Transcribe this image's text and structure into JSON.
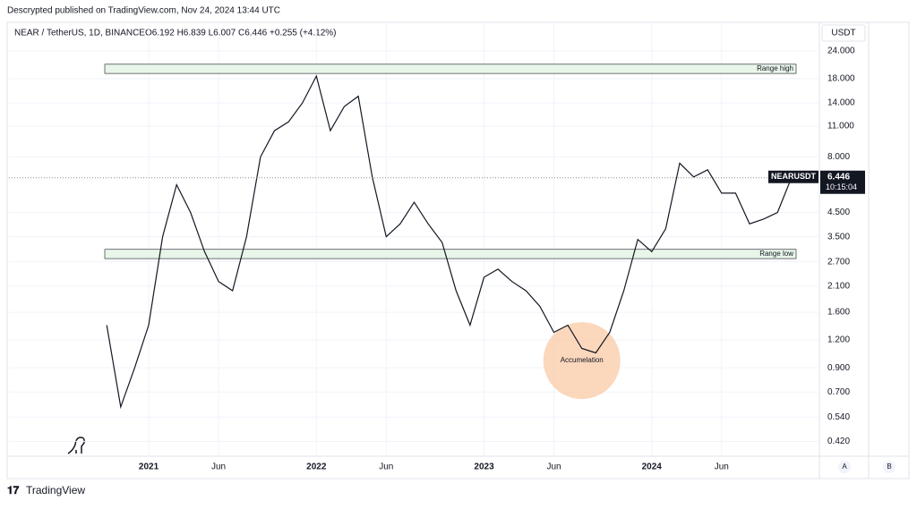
{
  "header": "Descrypted published on TradingView.com, Nov 24, 2024 13:44 UTC",
  "footer": "TradingView",
  "chart_data": {
    "type": "line",
    "title": "NEAR / TetherUS, 1D, BINANCE",
    "ohlc": "O6.192 H6.839 L6.007 C6.446 +0.255 (+4.12%)",
    "currency": "USDT",
    "log_scale": true,
    "grid": true,
    "x": [
      "2020-10",
      "2020-11",
      "2020-12",
      "2021-01",
      "2021-02",
      "2021-03",
      "2021-04",
      "2021-05",
      "2021-06",
      "2021-07",
      "2021-08",
      "2021-09",
      "2021-10",
      "2021-11",
      "2021-12",
      "2022-01",
      "2022-02",
      "2022-03",
      "2022-04",
      "2022-05",
      "2022-06",
      "2022-07",
      "2022-08",
      "2022-09",
      "2022-10",
      "2022-11",
      "2022-12",
      "2023-01",
      "2023-02",
      "2023-03",
      "2023-04",
      "2023-05",
      "2023-06",
      "2023-07",
      "2023-08",
      "2023-09",
      "2023-10",
      "2023-11",
      "2023-12",
      "2024-01",
      "2024-02",
      "2024-03",
      "2024-04",
      "2024-05",
      "2024-06",
      "2024-07",
      "2024-08",
      "2024-09",
      "2024-10",
      "2024-11"
    ],
    "series": [
      {
        "name": "NEARUSDT",
        "color": "#131722",
        "values": [
          1.4,
          0.6,
          0.9,
          1.4,
          3.5,
          6.0,
          4.5,
          3.0,
          2.2,
          2.0,
          3.5,
          8.0,
          10.5,
          11.5,
          14,
          18.5,
          10.5,
          13.5,
          15,
          6.5,
          3.5,
          4.0,
          5.0,
          4.0,
          3.3,
          2.0,
          1.4,
          2.3,
          2.5,
          2.2,
          2.0,
          1.7,
          1.3,
          1.4,
          1.1,
          1.05,
          1.3,
          2.0,
          3.4,
          3.0,
          3.8,
          7.5,
          6.5,
          7.0,
          5.5,
          5.5,
          4.0,
          4.2,
          4.5,
          6.446
        ]
      }
    ],
    "countdown": "10:15:04",
    "xlim": [
      "2020-03",
      "2025-01"
    ],
    "xticks": [
      {
        "value": "2021-01",
        "label": "2021"
      },
      {
        "value": "2021-06",
        "label": "Jun"
      },
      {
        "value": "2022-01",
        "label": "2022"
      },
      {
        "value": "2022-06",
        "label": "Jun"
      },
      {
        "value": "2023-01",
        "label": "2023"
      },
      {
        "value": "2023-06",
        "label": "Jun"
      },
      {
        "value": "2024-01",
        "label": "2024"
      },
      {
        "value": "2024-06",
        "label": "Jun"
      }
    ],
    "ylim": [
      0.36,
      26.8
    ],
    "yticks": [
      {
        "value": 24,
        "label": "24.000"
      },
      {
        "value": 18,
        "label": "18.000"
      },
      {
        "value": 14,
        "label": "14.000"
      },
      {
        "value": 11,
        "label": "11.000"
      },
      {
        "value": 8,
        "label": "8.000"
      },
      {
        "value": 4.5,
        "label": "4.500"
      },
      {
        "value": 3.5,
        "label": "3.500"
      },
      {
        "value": 2.7,
        "label": "2.700"
      },
      {
        "value": 2.1,
        "label": "2.100"
      },
      {
        "value": 1.6,
        "label": "1.600"
      },
      {
        "value": 1.2,
        "label": "1.200"
      },
      {
        "value": 0.9,
        "label": "0.900"
      },
      {
        "value": 0.7,
        "label": "0.700"
      },
      {
        "value": 0.54,
        "label": "0.540"
      },
      {
        "value": 0.42,
        "label": "0.420"
      }
    ],
    "zones": [
      {
        "label": "Range high",
        "low": 19.0,
        "high": 20.9
      },
      {
        "label": "Range low",
        "low": 2.79,
        "high": 3.07
      }
    ],
    "annotation": {
      "label": "Accumelation",
      "x": "2023-08",
      "y": 0.97
    },
    "buttons": [
      "A",
      "B"
    ]
  }
}
